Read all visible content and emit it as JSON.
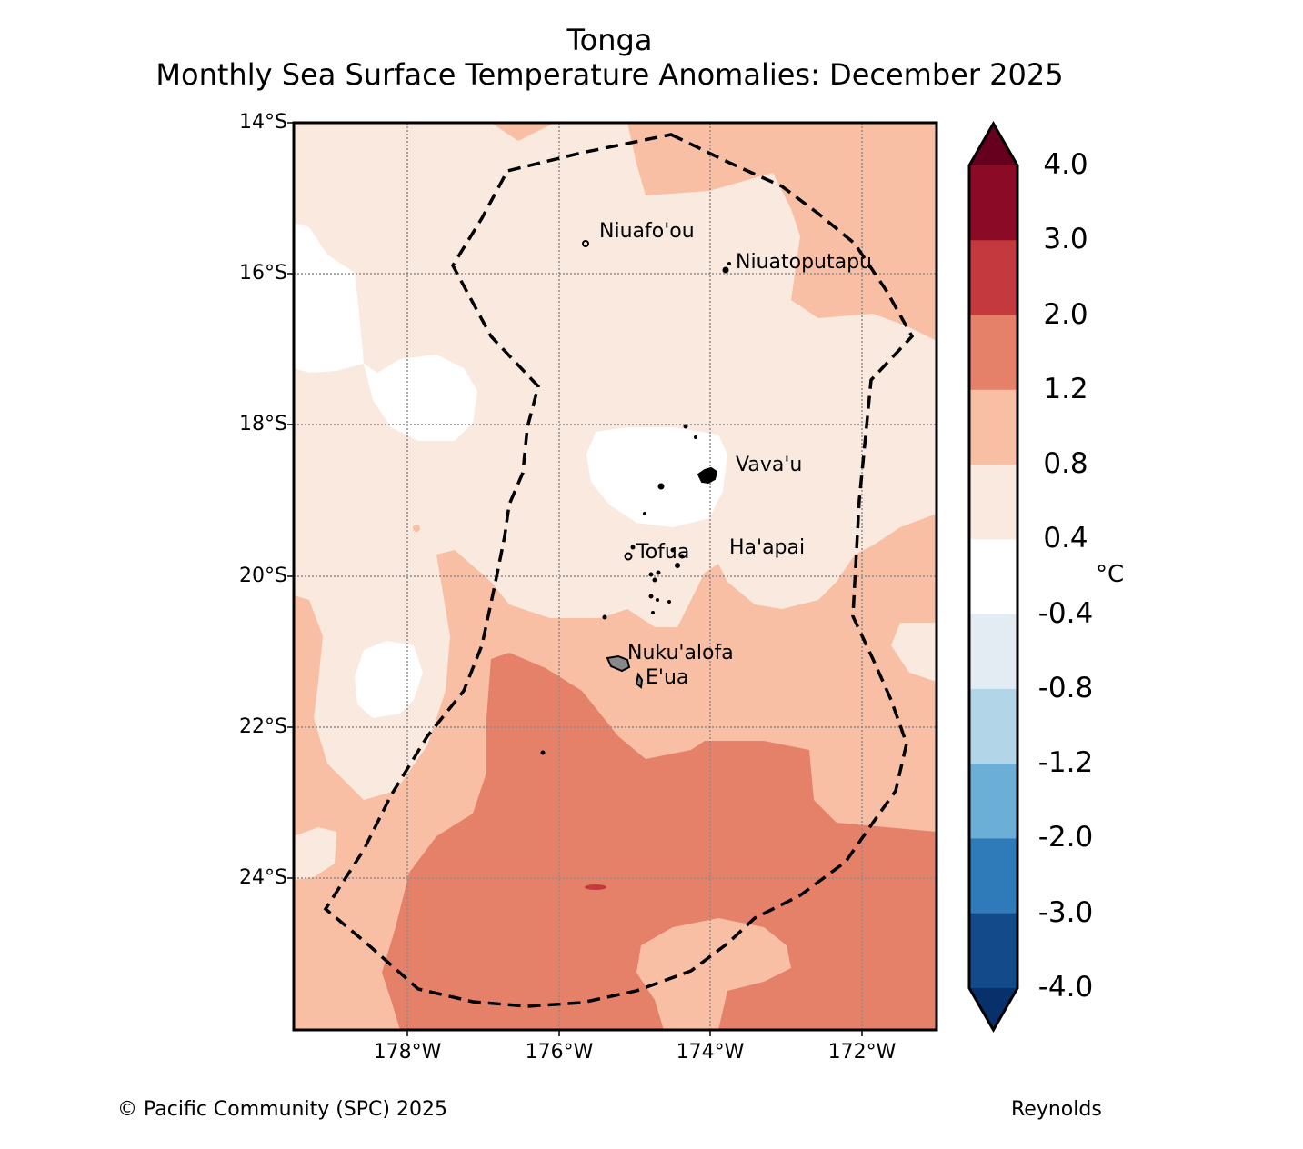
{
  "title": "Tonga",
  "subtitle": "Monthly Sea Surface Temperature Anomalies: December 2025",
  "map": {
    "lat_labels": [
      "14°S",
      "16°S",
      "18°S",
      "20°S",
      "22°S",
      "24°S"
    ],
    "lon_labels": [
      "178°W",
      "176°W",
      "174°W",
      "172°W"
    ],
    "places": [
      {
        "id": "niuafoou",
        "name": "Niuafo'ou"
      },
      {
        "id": "niuatoputapu",
        "name": "Niuatoputapu"
      },
      {
        "id": "vavau",
        "name": "Vava'u"
      },
      {
        "id": "tofua",
        "name": "Tofua"
      },
      {
        "id": "haapai",
        "name": "Ha'apai"
      },
      {
        "id": "nukualofa",
        "name": "Nuku'alofa"
      },
      {
        "id": "eua",
        "name": "E'ua"
      }
    ],
    "boundary": "EEZ dashed outline"
  },
  "colorbar": {
    "unit": "°C",
    "ticks": [
      "4.0",
      "3.0",
      "2.0",
      "1.2",
      "0.8",
      "0.4",
      "-0.4",
      "-0.8",
      "-1.2",
      "-2.0",
      "-3.0",
      "-4.0"
    ],
    "colors": [
      "#67001f",
      "#8b0a26",
      "#c3393d",
      "#e58168",
      "#f8bfa4",
      "#fae9df",
      "#ffffff",
      "#e3ecf3",
      "#b2d5e7",
      "#6baed6",
      "#2f7ab8",
      "#134a89",
      "#08306b"
    ]
  },
  "chart_data": {
    "type": "heatmap",
    "title": "Tonga — Monthly Sea Surface Temperature Anomalies: December 2025",
    "variable": "SST anomaly",
    "units": "°C",
    "lat_range": [
      "14°S",
      "26°S"
    ],
    "lon_range": [
      "179.5°W",
      "171°W"
    ],
    "levels": [
      -4.0,
      -3.0,
      -2.0,
      -1.2,
      -0.8,
      -0.4,
      0.4,
      0.8,
      1.2,
      2.0,
      3.0,
      4.0
    ],
    "dominant_range_north": "0.4 to 1.2",
    "dominant_range_south": "1.2 to 2.0"
  },
  "footer": {
    "copyright": "© Pacific Community (SPC) 2025",
    "source": "Reynolds"
  }
}
